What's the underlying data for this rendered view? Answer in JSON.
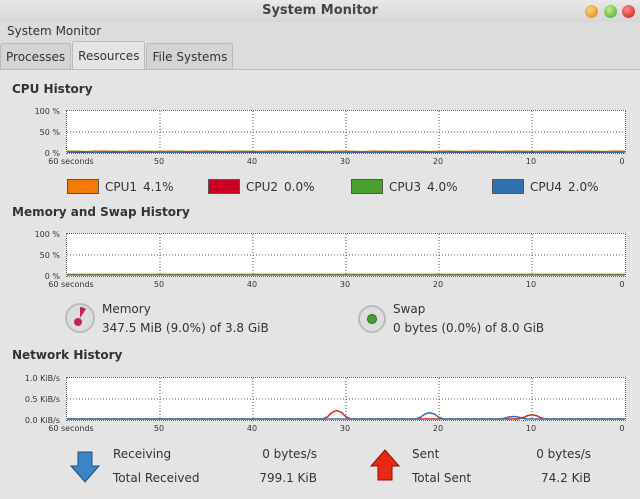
{
  "window": {
    "title": "System Monitor",
    "menu": "System Monitor"
  },
  "tabs": [
    {
      "label": "Processes"
    },
    {
      "label": "Resources",
      "active": true
    },
    {
      "label": "File Systems"
    }
  ],
  "cpu": {
    "title": "CPU History",
    "y_ticks": [
      "100 %",
      "50 %",
      "0 %"
    ],
    "x_ticks": [
      "60 seconds",
      "50",
      "40",
      "30",
      "20",
      "10",
      "0"
    ],
    "legend": [
      {
        "name": "CPU1",
        "value": "4.1%",
        "color": "#f57900"
      },
      {
        "name": "CPU2",
        "value": "0.0%",
        "color": "#cc0022"
      },
      {
        "name": "CPU3",
        "value": "4.0%",
        "color": "#4aa02c"
      },
      {
        "name": "CPU4",
        "value": "2.0%",
        "color": "#3070b0"
      }
    ],
    "series_level_percent": [
      4,
      1,
      3,
      2
    ]
  },
  "memory": {
    "title": "Memory and Swap History",
    "y_ticks": [
      "100 %",
      "50 %",
      "0 %"
    ],
    "x_ticks": [
      "60 seconds",
      "50",
      "40",
      "30",
      "20",
      "10",
      "0"
    ],
    "memory_label": "Memory",
    "memory_value": "347.5 MiB (9.0%) of 3.8 GiB",
    "memory_color": "#c0245a",
    "memory_percent": 9.0,
    "swap_label": "Swap",
    "swap_value": "0 bytes (0.0%) of 8.0 GiB",
    "swap_color": "#4aa02c",
    "swap_percent": 0.0
  },
  "network": {
    "title": "Network History",
    "y_ticks": [
      "1.0 KiB/s",
      "0.5 KiB/s",
      "0.0 KiB/s"
    ],
    "x_ticks": [
      "60 seconds",
      "50",
      "40",
      "30",
      "20",
      "10",
      "0"
    ],
    "receiving_label": "Receiving",
    "receiving_value": "0 bytes/s",
    "total_received_label": "Total Received",
    "total_received_value": "799.1 KiB",
    "sent_label": "Sent",
    "sent_value": "0 bytes/s",
    "total_sent_label": "Total Sent",
    "total_sent_value": "74.2 KiB",
    "receiving_color": "#3070b0",
    "sent_color": "#e02010",
    "receiving_peaks": [
      [
        21,
        0.15
      ],
      [
        12,
        0.06
      ]
    ],
    "sent_peaks": [
      [
        31,
        0.2
      ],
      [
        10,
        0.1
      ]
    ]
  }
}
